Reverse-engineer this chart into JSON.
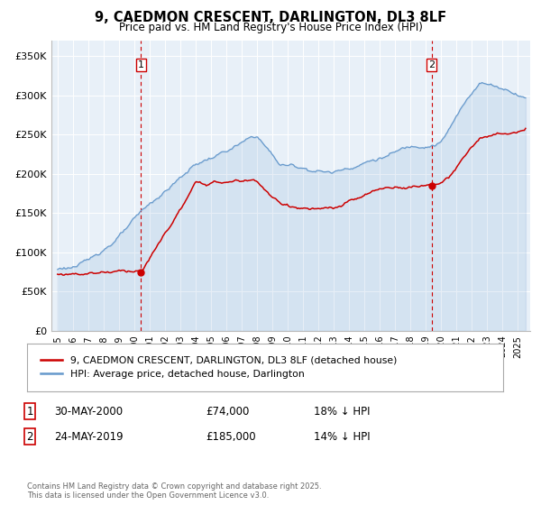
{
  "title": "9, CAEDMON CRESCENT, DARLINGTON, DL3 8LF",
  "subtitle": "Price paid vs. HM Land Registry's House Price Index (HPI)",
  "ylim": [
    0,
    370000
  ],
  "yticks": [
    0,
    50000,
    100000,
    150000,
    200000,
    250000,
    300000,
    350000
  ],
  "ytick_labels": [
    "£0",
    "£50K",
    "£100K",
    "£150K",
    "£200K",
    "£250K",
    "£300K",
    "£350K"
  ],
  "red_color": "#cc0000",
  "blue_color": "#6699cc",
  "blue_fill": "#ddeeff",
  "vline_color": "#cc0000",
  "background_color": "#ffffff",
  "chart_bg": "#e8f0f8",
  "grid_color": "#ffffff",
  "legend1_label": "9, CAEDMON CRESCENT, DARLINGTON, DL3 8LF (detached house)",
  "legend2_label": "HPI: Average price, detached house, Darlington",
  "point1_year": 2000.42,
  "point1_value": 74000,
  "point1_date": "30-MAY-2000",
  "point1_price": "£74,000",
  "point1_hpi": "18% ↓ HPI",
  "point2_year": 2019.39,
  "point2_value": 185000,
  "point2_date": "24-MAY-2019",
  "point2_price": "£185,000",
  "point2_hpi": "14% ↓ HPI",
  "footnote": "Contains HM Land Registry data © Crown copyright and database right 2025.\nThis data is licensed under the Open Government Licence v3.0.",
  "xstart": 1995,
  "xend": 2025
}
